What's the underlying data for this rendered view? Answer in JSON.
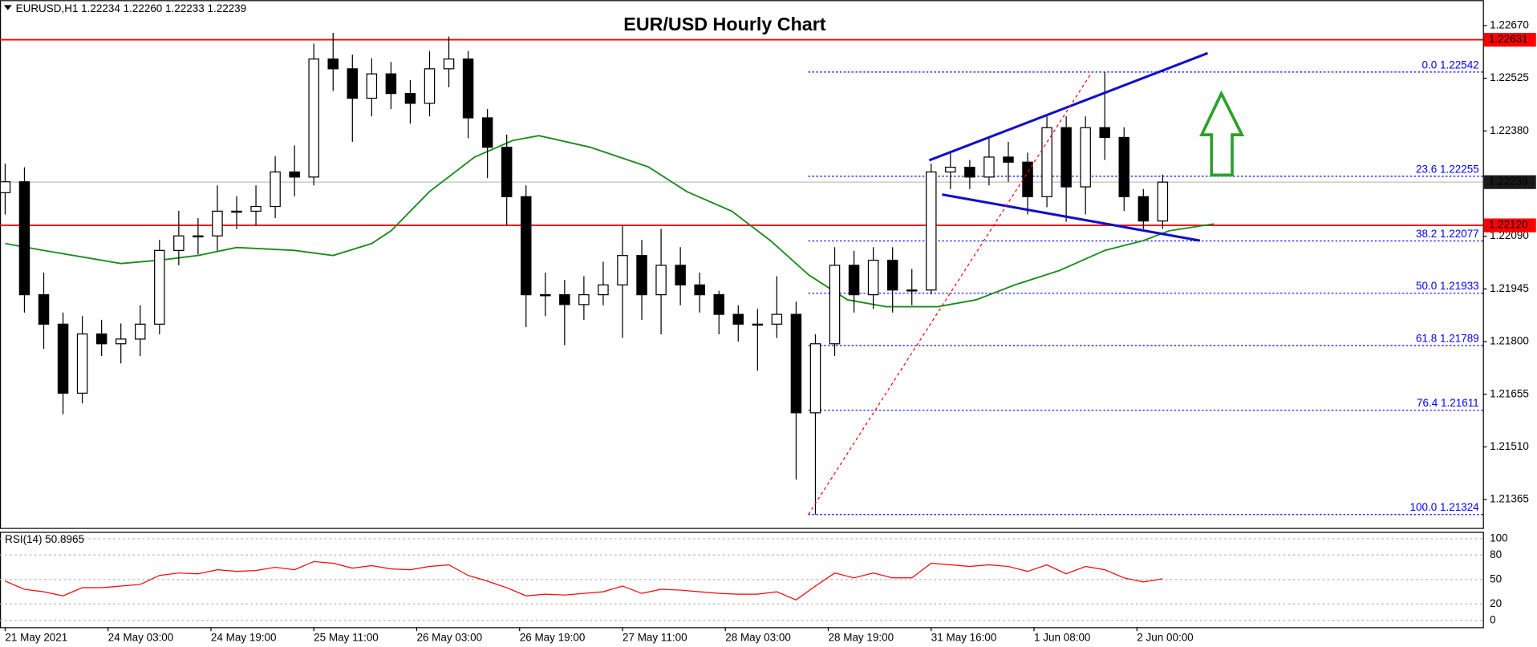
{
  "chart_data": {
    "type": "candlestick",
    "title": "EUR/USD Hourly Chart",
    "header": "EURUSD,H1  1.22234 1.22260 1.22233 1.22239",
    "x": [
      0,
      3,
      6,
      9,
      12,
      15,
      18,
      21,
      24,
      27,
      30,
      33,
      36,
      39,
      42,
      45,
      48,
      51,
      54,
      57,
      60,
      63,
      66,
      69,
      72,
      75,
      78,
      81,
      84,
      87,
      90,
      93,
      96,
      99,
      102,
      105,
      108,
      111,
      114,
      117,
      120,
      123,
      126,
      129,
      132,
      135,
      138,
      141,
      144,
      147,
      150,
      153,
      156,
      159,
      162,
      165,
      168,
      171,
      174,
      177,
      180
    ],
    "open": [
      1.2221,
      1.2224,
      1.21929,
      1.21848,
      1.21658,
      1.21821,
      1.21794,
      1.21807,
      1.21848,
      1.22051,
      1.22091,
      1.22091,
      1.22159,
      1.22159,
      1.22172,
      1.22267,
      1.22253,
      1.22578,
      1.22551,
      1.2247,
      1.22537,
      1.22483,
      1.22456,
      1.22551,
      1.22578,
      1.22416,
      1.22335,
      1.22199,
      1.21929,
      1.21929,
      1.21902,
      1.21929,
      1.21956,
      1.22037,
      1.21929,
      1.2201,
      1.21956,
      1.21929,
      1.21875,
      1.21848,
      1.21848,
      1.21875,
      1.21604,
      1.21794,
      1.2201,
      1.21929,
      1.22024,
      1.21942,
      1.21942,
      1.22267,
      1.2228,
      1.22253,
      1.22308,
      1.22294,
      1.22199,
      1.22389,
      1.22226,
      1.22389,
      1.22362,
      1.22199,
      1.22132
    ],
    "high": [
      1.2229,
      1.2228,
      1.2199,
      1.2188,
      1.2187,
      1.2186,
      1.2185,
      1.219,
      1.2208,
      1.2216,
      1.2214,
      1.2223,
      1.222,
      1.2223,
      1.2231,
      1.2234,
      1.2262,
      1.2265,
      1.2259,
      1.2258,
      1.2257,
      1.2252,
      1.226,
      1.2264,
      1.226,
      1.2244,
      1.2237,
      1.2223,
      1.2199,
      1.2197,
      1.2198,
      1.2202,
      1.2212,
      1.2208,
      1.2211,
      1.2206,
      1.2199,
      1.2194,
      1.219,
      1.2189,
      1.2198,
      1.2191,
      1.2182,
      1.2206,
      1.2205,
      1.2206,
      1.2206,
      1.22,
      1.2229,
      1.2232,
      1.223,
      1.2236,
      1.2235,
      1.2232,
      1.2242,
      1.2242,
      1.2242,
      1.22542,
      1.2239,
      1.2222,
      1.2226
    ],
    "low": [
      1.2215,
      1.2188,
      1.2178,
      1.216,
      1.2163,
      1.2176,
      1.2174,
      1.2176,
      1.2182,
      1.2201,
      1.2204,
      1.2205,
      1.2211,
      1.2212,
      1.2214,
      1.222,
      1.2223,
      1.2249,
      1.2235,
      1.2242,
      1.2244,
      1.224,
      1.2242,
      1.225,
      1.2236,
      1.2225,
      1.2212,
      1.2184,
      1.2187,
      1.2179,
      1.2186,
      1.219,
      1.2181,
      1.2186,
      1.2182,
      1.219,
      1.2188,
      1.2182,
      1.218,
      1.2172,
      1.2181,
      1.2142,
      1.21324,
      1.2176,
      1.2188,
      1.2189,
      1.2188,
      1.219,
      1.2193,
      1.2222,
      1.2222,
      1.2223,
      1.2224,
      1.2215,
      1.2217,
      1.2213,
      1.2215,
      1.223,
      1.2216,
      1.2211,
      1.2211
    ],
    "close": [
      1.2224,
      1.21929,
      1.21848,
      1.21658,
      1.21821,
      1.21794,
      1.21807,
      1.21848,
      1.22051,
      1.22091,
      1.22091,
      1.22159,
      1.22159,
      1.22172,
      1.22267,
      1.22253,
      1.22578,
      1.22551,
      1.2247,
      1.22537,
      1.22483,
      1.22456,
      1.22551,
      1.22578,
      1.22416,
      1.22335,
      1.22199,
      1.21929,
      1.21929,
      1.21902,
      1.21929,
      1.21956,
      1.22037,
      1.21929,
      1.2201,
      1.21956,
      1.21929,
      1.21875,
      1.21848,
      1.21848,
      1.21875,
      1.21604,
      1.21794,
      1.2201,
      1.21929,
      1.22024,
      1.21942,
      1.21942,
      1.22267,
      1.2228,
      1.22253,
      1.22308,
      1.22294,
      1.22199,
      1.22389,
      1.22226,
      1.22389,
      1.22362,
      1.22199,
      1.22132,
      1.22239
    ],
    "bull_color": "#ffffff",
    "bear_color": "#000000",
    "xlim": [
      -0.8,
      229.8
    ],
    "xticks": [
      {
        "value": 0,
        "label": "21 May 2021"
      },
      {
        "value": 16,
        "label": "24 May 03:00"
      },
      {
        "value": 32,
        "label": "24 May 19:00"
      },
      {
        "value": 48,
        "label": "25 May 11:00"
      },
      {
        "value": 64,
        "label": "26 May 03:00"
      },
      {
        "value": 80,
        "label": "26 May 19:00"
      },
      {
        "value": 96,
        "label": "27 May 11:00"
      },
      {
        "value": 112,
        "label": "28 May 03:00"
      },
      {
        "value": 128,
        "label": "28 May 19:00"
      },
      {
        "value": 144,
        "label": "31 May 16:00"
      },
      {
        "value": 160,
        "label": "1 Jun 08:00"
      },
      {
        "value": 176,
        "label": "2 Jun 00:00"
      }
    ],
    "ylim": [
      1.21287,
      1.2274
    ],
    "yticks": [
      {
        "value": 1.2267,
        "label": "1.22670"
      },
      1.22525,
      {
        "value": 1.2238,
        "label": "1.22380"
      },
      {
        "value": 1.2209,
        "label": "1.22090"
      },
      1.21945,
      {
        "value": 1.218,
        "label": "1.21800"
      },
      1.21655,
      {
        "value": 1.2151,
        "label": "1.21510"
      },
      1.21365
    ],
    "ma": {
      "color": "#1a8a1a",
      "x": [
        0,
        6,
        15,
        18,
        24,
        30,
        36,
        45,
        51,
        57,
        60,
        66,
        73,
        79,
        83,
        91,
        100,
        106,
        113,
        119,
        125,
        131,
        137,
        145,
        151,
        157,
        164,
        171,
        177,
        181,
        188
      ],
      "values": [
        1.2207,
        1.22051,
        1.22024,
        1.22015,
        1.22024,
        1.22037,
        1.22059,
        1.22051,
        1.22037,
        1.2207,
        1.22105,
        1.22213,
        1.22308,
        1.22354,
        1.22367,
        1.22335,
        1.22281,
        1.22213,
        1.22159,
        1.22078,
        1.21983,
        1.21915,
        1.21896,
        1.21896,
        1.21915,
        1.21956,
        1.21996,
        1.22051,
        1.22078,
        1.22105,
        1.22124
      ]
    },
    "levels": [
      {
        "price": 1.22631,
        "color": "#ff0000"
      },
      {
        "price": {
          "value": 1.2212,
          "label": "1.22120"
        },
        "color": "#ff0000"
      }
    ],
    "current_price": 1.22239,
    "current_color": "#1a1a1a",
    "fib": {
      "color": "#0000ff",
      "start_x": 124.9,
      "levels": [
        {
          "label": "0.0",
          "value": 1.22542
        },
        {
          "label": "23.6",
          "value": 1.22255
        },
        {
          "label": "38.2",
          "value": 1.22077
        },
        {
          "label": "50.0",
          "value": 1.21933
        },
        {
          "label": "61.8",
          "value": 1.21789
        },
        {
          "label": "76.4",
          "value": 1.21611
        },
        {
          "label": "100.0",
          "value": 1.21324
        }
      ]
    },
    "trendlines": [
      {
        "color": "#1010c8",
        "dashed": false,
        "x": [
          143.7,
          187
        ],
        "y": [
          1.22299,
          1.22594
        ]
      },
      {
        "color": "#1010c8",
        "dashed": false,
        "x": [
          145.7,
          185.8
        ],
        "y": [
          1.22205,
          1.22078
        ]
      },
      {
        "color": "#ff0000",
        "dashed": true,
        "x": [
          124.9,
          169
        ],
        "y": [
          1.21324,
          1.22542
        ]
      }
    ],
    "rsi": {
      "label": "RSI(14)",
      "color": "#ff0000",
      "ylim": [
        -8.4,
        108.4
      ],
      "yticks": [
        0,
        20,
        50,
        80,
        100
      ],
      "values": [
        48,
        38,
        35,
        30,
        40,
        40,
        42,
        44,
        55,
        58,
        57,
        62,
        60,
        61,
        65,
        62,
        72,
        70,
        64,
        67,
        63,
        62,
        66,
        68,
        55,
        48,
        40,
        30,
        32,
        31,
        33,
        35,
        42,
        33,
        38,
        37,
        35,
        33,
        32,
        32,
        35,
        25,
        42,
        58,
        52,
        58,
        52,
        52,
        70,
        68,
        66,
        68,
        66,
        60,
        68,
        57,
        66,
        62,
        52,
        47,
        50.8965
      ]
    }
  }
}
